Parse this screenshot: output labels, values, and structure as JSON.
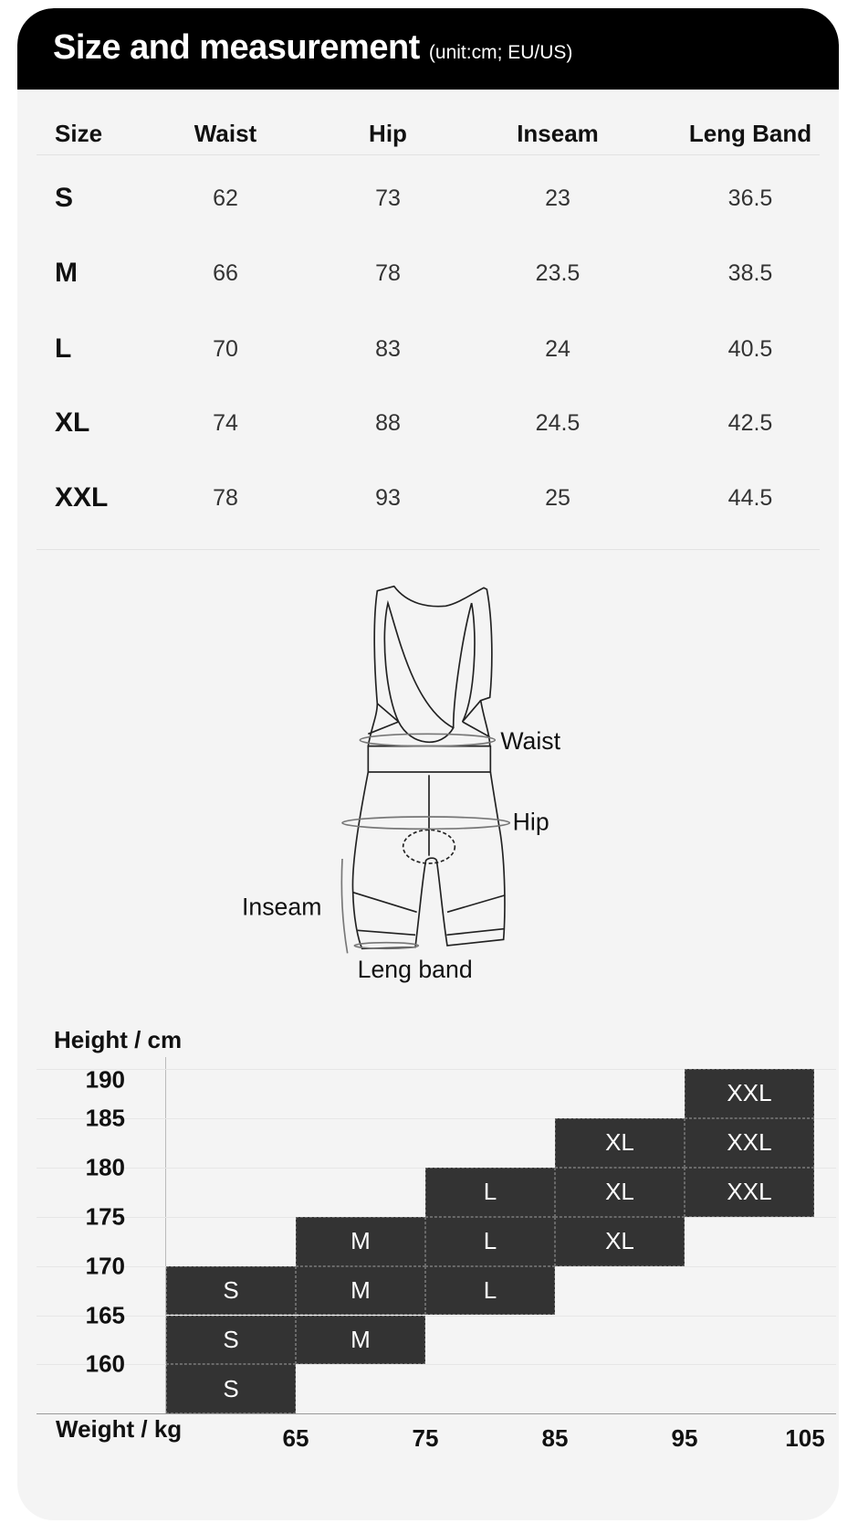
{
  "header": {
    "title": "Size and measurement",
    "subtitle": "(unit:cm; EU/US)"
  },
  "table": {
    "columns": [
      "Size",
      "Waist",
      "Hip",
      "Inseam",
      "Leng Band"
    ],
    "rows": [
      [
        "S",
        "62",
        "73",
        "23",
        "36.5"
      ],
      [
        "M",
        "66",
        "78",
        "23.5",
        "38.5"
      ],
      [
        "L",
        "70",
        "83",
        "24",
        "40.5"
      ],
      [
        "XL",
        "74",
        "88",
        "24.5",
        "42.5"
      ],
      [
        "XXL",
        "78",
        "93",
        "25",
        "44.5"
      ]
    ]
  },
  "figure": {
    "waist": "Waist",
    "hip": "Hip",
    "inseam": "Inseam",
    "leg_band": "Leng band"
  },
  "size_chart": {
    "y_label": "Height / cm",
    "x_label": "Weight / kg",
    "y_ticks": [
      "190",
      "185",
      "180",
      "175",
      "170",
      "165",
      "160"
    ],
    "x_ticks": [
      "65",
      "75",
      "85",
      "95",
      "105"
    ],
    "cell_color": "#333333",
    "cells": [
      {
        "size": "S",
        "weight": [
          55,
          65
        ],
        "height": [
          165,
          170
        ]
      },
      {
        "size": "S",
        "weight": [
          55,
          65
        ],
        "height": [
          160,
          165
        ]
      },
      {
        "size": "S",
        "weight": [
          55,
          65
        ],
        "height": [
          155,
          160
        ]
      },
      {
        "size": "M",
        "weight": [
          65,
          75
        ],
        "height": [
          170,
          175
        ]
      },
      {
        "size": "M",
        "weight": [
          65,
          75
        ],
        "height": [
          165,
          170
        ]
      },
      {
        "size": "M",
        "weight": [
          65,
          75
        ],
        "height": [
          160,
          165
        ]
      },
      {
        "size": "L",
        "weight": [
          75,
          85
        ],
        "height": [
          175,
          180
        ]
      },
      {
        "size": "L",
        "weight": [
          75,
          85
        ],
        "height": [
          170,
          175
        ]
      },
      {
        "size": "L",
        "weight": [
          75,
          85
        ],
        "height": [
          165,
          170
        ]
      },
      {
        "size": "XL",
        "weight": [
          85,
          95
        ],
        "height": [
          180,
          185
        ]
      },
      {
        "size": "XL",
        "weight": [
          85,
          95
        ],
        "height": [
          175,
          180
        ]
      },
      {
        "size": "XL",
        "weight": [
          85,
          95
        ],
        "height": [
          170,
          175
        ]
      },
      {
        "size": "XXL",
        "weight": [
          95,
          105
        ],
        "height": [
          185,
          190
        ]
      },
      {
        "size": "XXL",
        "weight": [
          95,
          105
        ],
        "height": [
          180,
          185
        ]
      },
      {
        "size": "XXL",
        "weight": [
          95,
          105
        ],
        "height": [
          175,
          180
        ]
      }
    ]
  }
}
